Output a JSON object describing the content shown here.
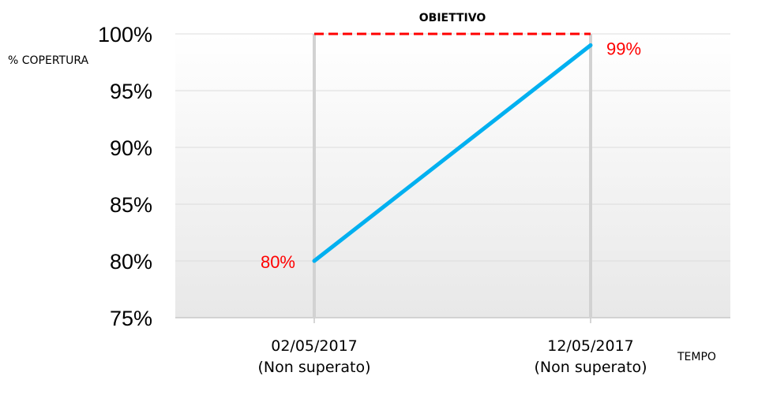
{
  "chart_data": {
    "type": "line",
    "title": "",
    "ylabel": "% COPERTURA",
    "xlabel": "TEMPO",
    "ylim": [
      75,
      100
    ],
    "y_ticks": [
      "75%",
      "80%",
      "85%",
      "90%",
      "95%",
      "100%"
    ],
    "y_tick_values": [
      75,
      80,
      85,
      90,
      95,
      100
    ],
    "categories": [
      [
        "02/05/2017",
        "(Non superato)"
      ],
      [
        "12/05/2017",
        "(Non superato)"
      ]
    ],
    "series": [
      {
        "values": [
          80,
          99
        ],
        "data_labels": [
          "80%",
          "99%"
        ],
        "color": "#00b0f0"
      }
    ],
    "target": {
      "label": "OBIETTIVO",
      "value": 100,
      "color": "#ff0000"
    },
    "label_color": "#ff0000",
    "grid": true,
    "legend": "none"
  }
}
